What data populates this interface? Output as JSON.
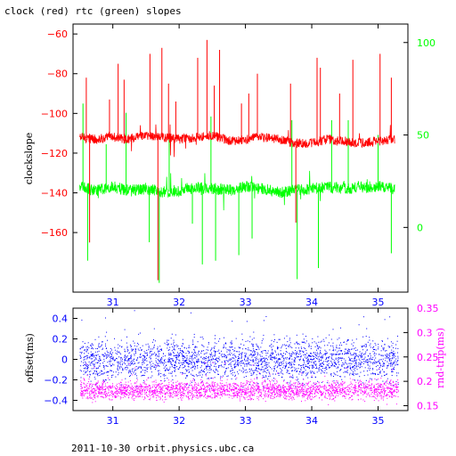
{
  "header": {
    "title": "clock (red) rtc (green) slopes"
  },
  "footer": {
    "text": "2011-10-30  orbit.physics.ubc.ca"
  },
  "colors": {
    "clock": "#ff0000",
    "rtc": "#00ff00",
    "offset": "#0000ff",
    "rndtrip": "#ff00ff",
    "frame": "#000000"
  },
  "chart_data": [
    {
      "type": "line",
      "title": "clock (red) rtc (green) slopes",
      "ylabel": "clockslope",
      "y2label": "",
      "xlim": [
        30.4,
        35.45
      ],
      "ylim": [
        -190,
        -55
      ],
      "y2lim": [
        -35,
        110
      ],
      "x_ticks": [
        31,
        32,
        33,
        34,
        35
      ],
      "y_ticks": [
        -60,
        -80,
        -100,
        -120,
        -140,
        -160
      ],
      "y2_ticks": [
        100,
        50,
        0
      ],
      "series": [
        {
          "axis": "left",
          "color": "#ff0000",
          "x": [
            30.5,
            30.75,
            31.0,
            31.25,
            31.5,
            31.75,
            32.0,
            32.25,
            32.5,
            32.75,
            33.0,
            33.25,
            33.5,
            33.75,
            34.0,
            34.25,
            34.5,
            34.75,
            35.0,
            35.25
          ],
          "y": [
            -112,
            -113,
            -112,
            -113,
            -111,
            -112,
            -113,
            -112,
            -111,
            -114,
            -113,
            -112,
            -113,
            -115,
            -115,
            -113,
            -114,
            -115,
            -114,
            -113
          ],
          "spikes": [
            {
              "x": 30.6,
              "y": -82
            },
            {
              "x": 30.65,
              "y": -165
            },
            {
              "x": 30.95,
              "y": -93
            },
            {
              "x": 31.08,
              "y": -75
            },
            {
              "x": 31.17,
              "y": -83
            },
            {
              "x": 31.56,
              "y": -70
            },
            {
              "x": 31.68,
              "y": -184
            },
            {
              "x": 31.74,
              "y": -67
            },
            {
              "x": 31.84,
              "y": -85
            },
            {
              "x": 31.95,
              "y": -94
            },
            {
              "x": 32.28,
              "y": -72
            },
            {
              "x": 32.42,
              "y": -63
            },
            {
              "x": 32.53,
              "y": -86
            },
            {
              "x": 32.61,
              "y": -68
            },
            {
              "x": 32.94,
              "y": -95
            },
            {
              "x": 33.05,
              "y": -90
            },
            {
              "x": 33.18,
              "y": -80
            },
            {
              "x": 33.68,
              "y": -85
            },
            {
              "x": 33.76,
              "y": -155
            },
            {
              "x": 34.08,
              "y": -72
            },
            {
              "x": 34.13,
              "y": -77
            },
            {
              "x": 34.42,
              "y": -90
            },
            {
              "x": 34.62,
              "y": -73
            },
            {
              "x": 35.03,
              "y": -70
            },
            {
              "x": 35.2,
              "y": -82
            }
          ]
        },
        {
          "axis": "right",
          "color": "#00ff00",
          "x": [
            30.5,
            30.75,
            31.0,
            31.25,
            31.5,
            31.75,
            32.0,
            32.25,
            32.5,
            32.75,
            33.0,
            33.25,
            33.5,
            33.75,
            34.0,
            34.25,
            34.5,
            34.75,
            35.0,
            35.25
          ],
          "y": [
            22,
            20,
            22,
            20,
            21,
            19,
            20,
            22,
            21,
            20,
            22,
            21,
            19,
            20,
            21,
            22,
            21,
            22,
            22,
            21
          ],
          "spikes": [
            {
              "x": 30.55,
              "y": 67
            },
            {
              "x": 30.62,
              "y": -18
            },
            {
              "x": 30.9,
              "y": 45
            },
            {
              "x": 31.2,
              "y": 62
            },
            {
              "x": 31.55,
              "y": -8
            },
            {
              "x": 31.7,
              "y": -30
            },
            {
              "x": 31.85,
              "y": 50
            },
            {
              "x": 32.2,
              "y": 2
            },
            {
              "x": 32.35,
              "y": -20
            },
            {
              "x": 32.48,
              "y": 60
            },
            {
              "x": 32.55,
              "y": -18
            },
            {
              "x": 32.9,
              "y": -15
            },
            {
              "x": 33.1,
              "y": -6
            },
            {
              "x": 33.7,
              "y": 58
            },
            {
              "x": 33.78,
              "y": -28
            },
            {
              "x": 34.1,
              "y": -22
            },
            {
              "x": 34.3,
              "y": 58
            },
            {
              "x": 34.55,
              "y": 58
            },
            {
              "x": 35.0,
              "y": 50
            },
            {
              "x": 35.2,
              "y": -14
            }
          ]
        }
      ]
    },
    {
      "type": "scatter",
      "ylabel": "offset(ms)",
      "y2label": "rnd-trip(ms)",
      "xlim": [
        30.4,
        35.45
      ],
      "ylim": [
        -0.5,
        0.5
      ],
      "y2lim": [
        0.14,
        0.35
      ],
      "x_ticks": [
        31,
        32,
        33,
        34,
        35
      ],
      "y_ticks": [
        0.4,
        0.2,
        0,
        -0.2,
        -0.4
      ],
      "y2_ticks": [
        0.35,
        0.3,
        0.25,
        0.2,
        0.15
      ],
      "series": [
        {
          "axis": "left",
          "color": "#0000ff",
          "x": [
            30.5,
            35.3
          ],
          "center": 0.0,
          "spread": 0.17
        },
        {
          "axis": "right",
          "color": "#ff00ff",
          "x": [
            30.5,
            35.3
          ],
          "center": 0.183,
          "spread": 0.016
        }
      ]
    }
  ]
}
